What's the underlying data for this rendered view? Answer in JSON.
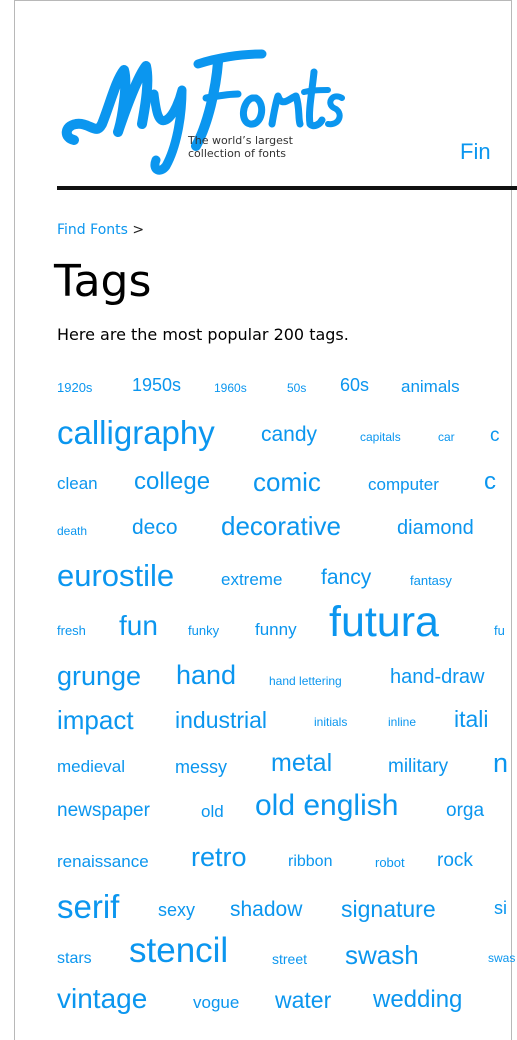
{
  "header": {
    "logo_text": "MyFonts",
    "tagline_line1": "The world’s largest",
    "tagline_line2": "collection of fonts",
    "nav_find": "Fin"
  },
  "breadcrumb": {
    "link": "Find Fonts",
    "separator": ">"
  },
  "page": {
    "title": "Tags",
    "intro": "Here are the most popular 200 tags."
  },
  "colors": {
    "link": "#0b96ef",
    "rule": "#111111"
  },
  "tags": [
    "1920s",
    "1950s",
    "1960s",
    "50s",
    "60s",
    "animals",
    "calligraphy",
    "candy",
    "capitals",
    "car",
    "c",
    "clean",
    "college",
    "comic",
    "computer",
    "c",
    "death",
    "deco",
    "decorative",
    "diamond",
    "eurostile",
    "extreme",
    "fancy",
    "fantasy",
    "fresh",
    "fun",
    "funky",
    "funny",
    "futura",
    "fu",
    "grunge",
    "hand",
    "hand lettering",
    "hand-draw",
    "impact",
    "industrial",
    "initials",
    "inline",
    "itali",
    "medieval",
    "messy",
    "metal",
    "military",
    "n",
    "newspaper",
    "old",
    "old english",
    "orga",
    "renaissance",
    "retro",
    "ribbon",
    "robot",
    "rock",
    "serif",
    "sexy",
    "shadow",
    "signature",
    "si",
    "stars",
    "stencil",
    "street",
    "swash",
    "swas",
    "vintage",
    "vogue",
    "water",
    "wedding"
  ]
}
